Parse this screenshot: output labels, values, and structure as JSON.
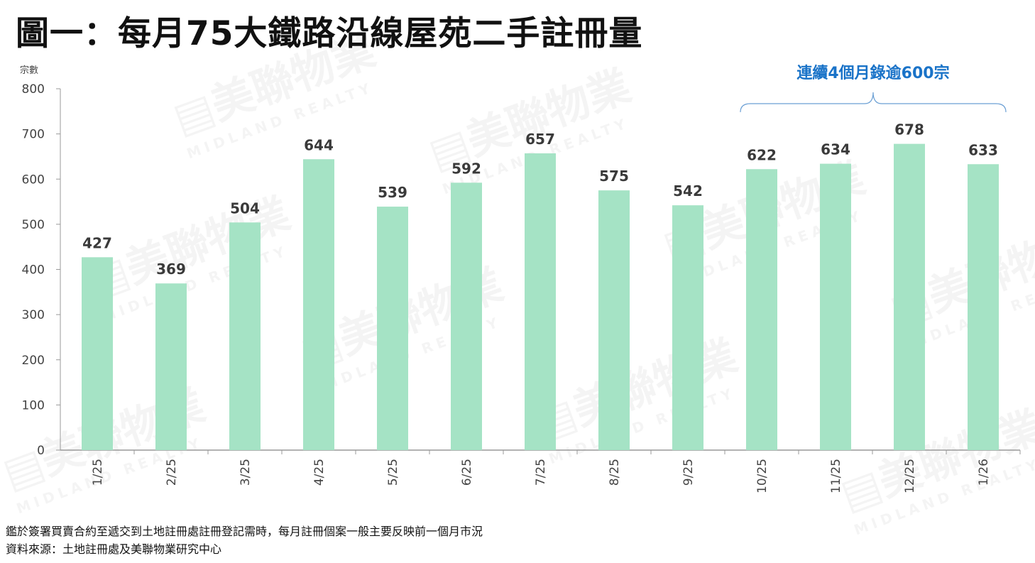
{
  "title": "圖一：每月75大鐵路沿線屋苑二手註冊量",
  "watermark": {
    "brand": "美聯物業",
    "sub": "MIDLAND REALTY"
  },
  "notes": [
    "鑑於簽署買賣合約至遞交到土地註冊處註冊登記需時，每月註冊個案一般主要反映前一個月市況",
    "資料來源：土地註冊處及美聯物業研究中心"
  ],
  "colors": {
    "bar": "#a5e3c5",
    "annotation": "#1a73c8",
    "axis": "#999999",
    "label": "#444444"
  },
  "chart_data": {
    "type": "bar",
    "title": "圖一：每月75大鐵路沿線屋苑二手註冊量",
    "ylabel": "宗數",
    "xlabel": "",
    "ylim": [
      0,
      800
    ],
    "yticks": [
      0,
      100,
      200,
      300,
      400,
      500,
      600,
      700,
      800
    ],
    "categories": [
      "1/25",
      "2/25",
      "3/25",
      "4/25",
      "5/25",
      "6/25",
      "7/25",
      "8/25",
      "9/25",
      "10/25",
      "11/25",
      "12/25",
      "1/26"
    ],
    "values": [
      427,
      369,
      504,
      644,
      539,
      592,
      657,
      575,
      542,
      622,
      634,
      678,
      633
    ],
    "grid": false,
    "annotation": {
      "text": "連續4個月錄逾600宗",
      "from": "10/25",
      "to": "1/26"
    }
  }
}
